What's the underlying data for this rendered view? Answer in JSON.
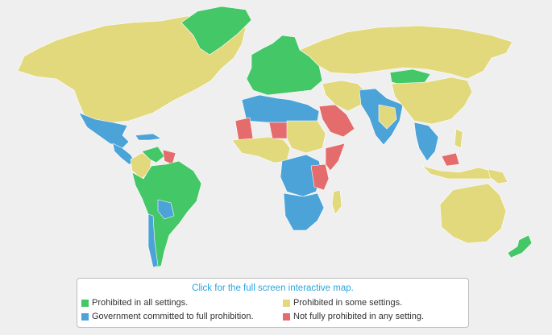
{
  "colors": {
    "green": "#44c767",
    "yellow": "#e2d87c",
    "blue": "#4ba3d8",
    "red": "#e56c6c",
    "background": "#efefef"
  },
  "map": {
    "regions": [
      {
        "name": "north-america",
        "status": "yellow"
      },
      {
        "name": "greenland",
        "status": "green"
      },
      {
        "name": "mexico",
        "status": "blue"
      },
      {
        "name": "central-america",
        "status": "blue"
      },
      {
        "name": "caribbean",
        "status": "blue"
      },
      {
        "name": "venezuela",
        "status": "green"
      },
      {
        "name": "guyana-suriname",
        "status": "red"
      },
      {
        "name": "colombia",
        "status": "yellow"
      },
      {
        "name": "south-america",
        "status": "green"
      },
      {
        "name": "bolivia",
        "status": "blue"
      },
      {
        "name": "chile",
        "status": "blue"
      },
      {
        "name": "europe",
        "status": "green"
      },
      {
        "name": "russia",
        "status": "yellow"
      },
      {
        "name": "north-africa",
        "status": "blue"
      },
      {
        "name": "mauritania",
        "status": "red"
      },
      {
        "name": "west-africa",
        "status": "yellow"
      },
      {
        "name": "niger",
        "status": "red"
      },
      {
        "name": "sudan",
        "status": "yellow"
      },
      {
        "name": "central-africa",
        "status": "blue"
      },
      {
        "name": "kenya",
        "status": "red"
      },
      {
        "name": "southern-africa",
        "status": "blue"
      },
      {
        "name": "arabia",
        "status": "red"
      },
      {
        "name": "somalia",
        "status": "red"
      },
      {
        "name": "madagascar",
        "status": "yellow"
      },
      {
        "name": "middle-east",
        "status": "yellow"
      },
      {
        "name": "south-asia",
        "status": "blue"
      },
      {
        "name": "india",
        "status": "yellow"
      },
      {
        "name": "mongolia",
        "status": "green"
      },
      {
        "name": "china",
        "status": "yellow"
      },
      {
        "name": "southeast-asia",
        "status": "blue"
      },
      {
        "name": "malaysia",
        "status": "red"
      },
      {
        "name": "indonesia",
        "status": "yellow"
      },
      {
        "name": "australia",
        "status": "yellow"
      },
      {
        "name": "new-zealand",
        "status": "green"
      }
    ]
  },
  "legend": {
    "link_text": "Click for the full screen interactive map.",
    "items": [
      {
        "label": "Prohibited in all settings.",
        "status": "green"
      },
      {
        "label": "Prohibited in some settings.",
        "status": "yellow"
      },
      {
        "label": "Government committed to full prohibition.",
        "status": "blue"
      },
      {
        "label": "Not fully prohibited in any setting.",
        "status": "red"
      }
    ]
  }
}
